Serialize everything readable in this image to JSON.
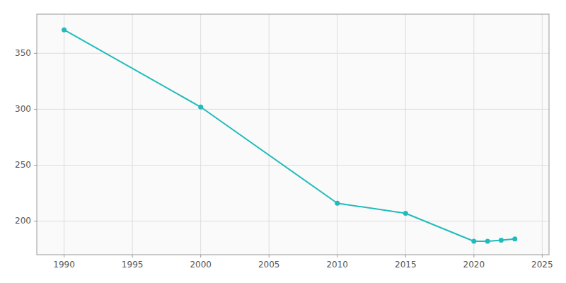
{
  "chart_data": {
    "type": "line",
    "x": [
      1990,
      2000,
      2010,
      2015,
      2020,
      2021,
      2022,
      2023
    ],
    "values": [
      371,
      302,
      216,
      207,
      182,
      182,
      183,
      184
    ],
    "color": "#22BBBB",
    "marker": "circle",
    "xlim": [
      1988,
      2025.5
    ],
    "ylim": [
      170,
      385
    ],
    "xticks": [
      1990,
      1995,
      2000,
      2005,
      2010,
      2015,
      2020,
      2025
    ],
    "yticks": [
      200,
      250,
      300,
      350
    ],
    "grid": true
  }
}
